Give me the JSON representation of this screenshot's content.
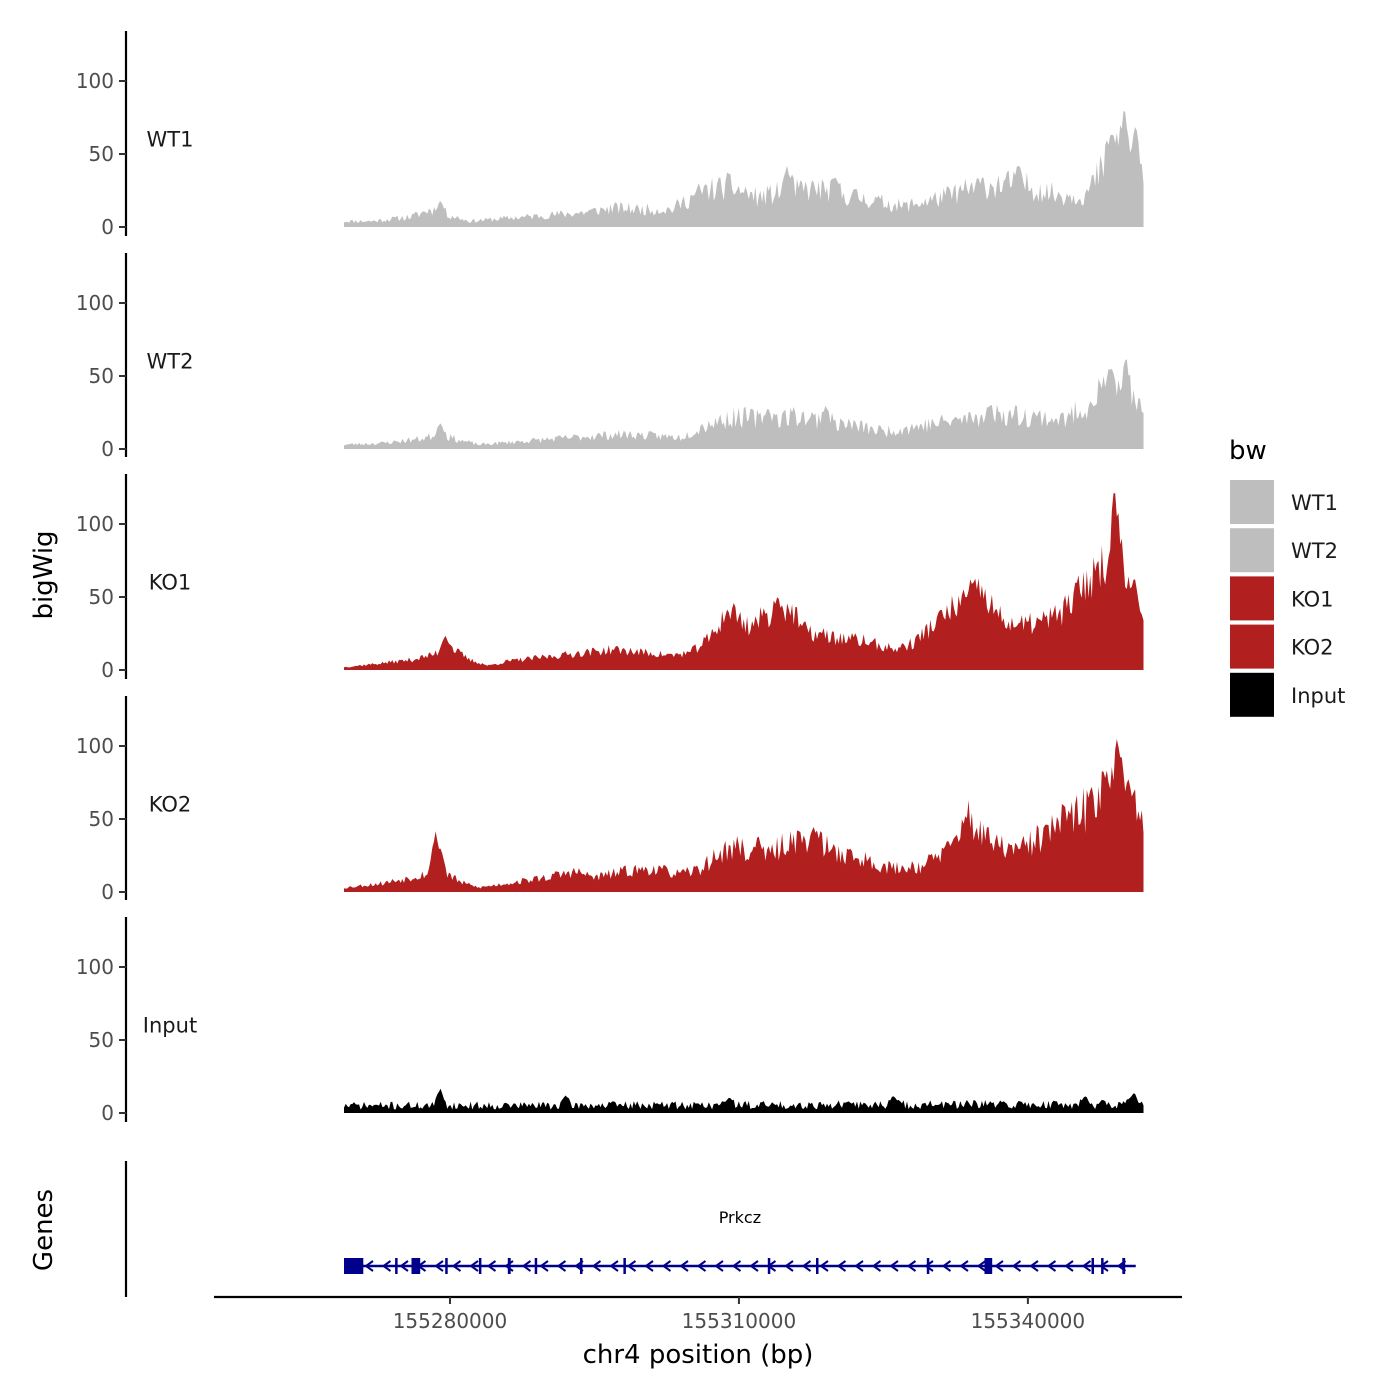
{
  "chart_data": {
    "type": "area",
    "y_axis_title": "bigWig",
    "genes_axis_title": "Genes",
    "x_axis_title": "chr4 position (bp)",
    "x_range": [
      155255500,
      155356000
    ],
    "x_ticks": [
      {
        "value": 155280000,
        "label": "155280000"
      },
      {
        "value": 155310000,
        "label": "155310000"
      },
      {
        "value": 155340000,
        "label": "155340000"
      }
    ],
    "y_range": [
      0,
      135
    ],
    "y_ticks": [
      {
        "value": 0,
        "label": "0"
      },
      {
        "value": 50,
        "label": "50"
      },
      {
        "value": 100,
        "label": "100"
      }
    ],
    "data_x_range": [
      155269000,
      155352000
    ],
    "legend": {
      "title": "bw",
      "entries": [
        {
          "label": "WT1",
          "color": "#bebebe"
        },
        {
          "label": "WT2",
          "color": "#bebebe"
        },
        {
          "label": "KO1",
          "color": "#b21f1f"
        },
        {
          "label": "KO2",
          "color": "#b21f1f"
        },
        {
          "label": "Input",
          "color": "#000000"
        }
      ]
    },
    "series": [
      {
        "name": "WT1",
        "color": "#bebebe",
        "noise": 0.35,
        "seed": 11,
        "profile": [
          [
            155269000,
            4
          ],
          [
            155272000,
            4
          ],
          [
            155276000,
            7
          ],
          [
            155278000,
            12
          ],
          [
            155280000,
            8
          ],
          [
            155282000,
            4
          ],
          [
            155286000,
            6
          ],
          [
            155290000,
            8
          ],
          [
            155294000,
            10
          ],
          [
            155297000,
            13
          ],
          [
            155300000,
            12
          ],
          [
            155303000,
            12
          ],
          [
            155306000,
            24
          ],
          [
            155309000,
            28
          ],
          [
            155312000,
            20
          ],
          [
            155315000,
            25
          ],
          [
            155318000,
            26
          ],
          [
            155321000,
            22
          ],
          [
            155324000,
            18
          ],
          [
            155327000,
            14
          ],
          [
            155331000,
            20
          ],
          [
            155335000,
            28
          ],
          [
            155339000,
            30
          ],
          [
            155343000,
            22
          ],
          [
            155346000,
            22
          ],
          [
            155348000,
            42
          ],
          [
            155349500,
            56
          ],
          [
            155351000,
            40
          ],
          [
            155352000,
            28
          ]
        ],
        "spikes": [
          [
            155279000,
            18
          ],
          [
            155315000,
            42
          ],
          [
            155320000,
            34
          ],
          [
            155339000,
            42
          ],
          [
            155348600,
            65
          ],
          [
            155350000,
            82
          ],
          [
            155351200,
            72
          ]
        ]
      },
      {
        "name": "WT2",
        "color": "#bebebe",
        "noise": 0.35,
        "seed": 23,
        "profile": [
          [
            155269000,
            3
          ],
          [
            155273000,
            4
          ],
          [
            155277000,
            7
          ],
          [
            155279000,
            10
          ],
          [
            155281000,
            6
          ],
          [
            155283000,
            3
          ],
          [
            155287000,
            5
          ],
          [
            155291000,
            7
          ],
          [
            155295000,
            9
          ],
          [
            155298000,
            10
          ],
          [
            155301000,
            9
          ],
          [
            155304000,
            8
          ],
          [
            155307000,
            18
          ],
          [
            155310000,
            22
          ],
          [
            155313000,
            20
          ],
          [
            155316000,
            23
          ],
          [
            155319000,
            19
          ],
          [
            155322000,
            16
          ],
          [
            155325000,
            12
          ],
          [
            155329000,
            16
          ],
          [
            155333000,
            20
          ],
          [
            155337000,
            24
          ],
          [
            155341000,
            22
          ],
          [
            155344000,
            20
          ],
          [
            155346000,
            30
          ],
          [
            155348000,
            42
          ],
          [
            155350000,
            36
          ],
          [
            155352000,
            24
          ]
        ],
        "spikes": [
          [
            155279000,
            18
          ],
          [
            155313000,
            28
          ],
          [
            155319000,
            30
          ],
          [
            155336000,
            30
          ],
          [
            155348500,
            56
          ],
          [
            155350200,
            65
          ]
        ]
      },
      {
        "name": "KO1",
        "color": "#b21f1f",
        "noise": 0.25,
        "seed": 37,
        "profile": [
          [
            155269000,
            2
          ],
          [
            155272000,
            4
          ],
          [
            155276000,
            7
          ],
          [
            155278000,
            10
          ],
          [
            155280000,
            16
          ],
          [
            155282000,
            7
          ],
          [
            155284000,
            3
          ],
          [
            155286000,
            6
          ],
          [
            155290000,
            9
          ],
          [
            155294000,
            12
          ],
          [
            155297000,
            14
          ],
          [
            155300000,
            12
          ],
          [
            155303000,
            10
          ],
          [
            155305000,
            12
          ],
          [
            155307000,
            22
          ],
          [
            155309000,
            42
          ],
          [
            155311000,
            30
          ],
          [
            155313000,
            38
          ],
          [
            155315000,
            44
          ],
          [
            155317000,
            26
          ],
          [
            155320000,
            22
          ],
          [
            155323000,
            20
          ],
          [
            155326000,
            14
          ],
          [
            155328000,
            18
          ],
          [
            155330000,
            30
          ],
          [
            155333000,
            46
          ],
          [
            155335000,
            54
          ],
          [
            155337000,
            36
          ],
          [
            155339000,
            30
          ],
          [
            155342000,
            34
          ],
          [
            155344000,
            42
          ],
          [
            155346000,
            60
          ],
          [
            155348000,
            74
          ],
          [
            155349300,
            86
          ],
          [
            155350500,
            66
          ],
          [
            155352000,
            34
          ]
        ],
        "spikes": [
          [
            155279500,
            24
          ],
          [
            155314000,
            50
          ],
          [
            155334500,
            60
          ],
          [
            155349000,
            125
          ],
          [
            155351000,
            62
          ]
        ]
      },
      {
        "name": "KO2",
        "color": "#b21f1f",
        "noise": 0.3,
        "seed": 53,
        "profile": [
          [
            155269000,
            3
          ],
          [
            155273000,
            6
          ],
          [
            155276000,
            10
          ],
          [
            155279000,
            16
          ],
          [
            155281000,
            7
          ],
          [
            155283000,
            3
          ],
          [
            155286000,
            6
          ],
          [
            155290000,
            10
          ],
          [
            155293000,
            14
          ],
          [
            155295000,
            10
          ],
          [
            155298000,
            14
          ],
          [
            155301000,
            16
          ],
          [
            155304000,
            12
          ],
          [
            155306000,
            16
          ],
          [
            155308000,
            26
          ],
          [
            155310000,
            32
          ],
          [
            155312000,
            20
          ],
          [
            155315000,
            34
          ],
          [
            155317000,
            38
          ],
          [
            155320000,
            28
          ],
          [
            155323000,
            22
          ],
          [
            155326000,
            16
          ],
          [
            155329000,
            18
          ],
          [
            155332000,
            30
          ],
          [
            155334000,
            50
          ],
          [
            155336000,
            34
          ],
          [
            155339000,
            28
          ],
          [
            155341000,
            36
          ],
          [
            155343000,
            46
          ],
          [
            155346000,
            56
          ],
          [
            155348000,
            78
          ],
          [
            155349500,
            70
          ],
          [
            155351000,
            56
          ],
          [
            155352000,
            42
          ]
        ],
        "spikes": [
          [
            155278500,
            42
          ],
          [
            155279000,
            30
          ],
          [
            155312000,
            40
          ],
          [
            155318000,
            42
          ],
          [
            155333500,
            52
          ],
          [
            155348200,
            82
          ],
          [
            155349300,
            108
          ],
          [
            155350500,
            78
          ]
        ]
      },
      {
        "name": "Input",
        "color": "#000000",
        "noise": 0.55,
        "seed": 71,
        "profile": [
          [
            155269000,
            5
          ],
          [
            155352000,
            6
          ]
        ],
        "spikes": [
          [
            155279000,
            17
          ],
          [
            155292000,
            12
          ],
          [
            155309000,
            11
          ],
          [
            155326000,
            12
          ],
          [
            155346000,
            12
          ],
          [
            155351000,
            14
          ]
        ]
      }
    ],
    "gene": {
      "name": "Prkcz",
      "strand": "-",
      "color": "#00008b",
      "start": 155269000,
      "end": 155351200,
      "exons": [
        [
          155269000,
          155271000
        ],
        [
          155274300,
          155274500
        ],
        [
          155276000,
          155276900
        ],
        [
          155279500,
          155279600
        ],
        [
          155283000,
          155283200
        ],
        [
          155286000,
          155286300
        ],
        [
          155288800,
          155289000
        ],
        [
          155293500,
          155293700
        ],
        [
          155298000,
          155298200
        ],
        [
          155313000,
          155313200
        ],
        [
          155318000,
          155318200
        ],
        [
          155329500,
          155329700
        ],
        [
          155335500,
          155336300
        ],
        [
          155346600,
          155346800
        ],
        [
          155347600,
          155347800
        ],
        [
          155349800,
          155350100
        ]
      ]
    }
  }
}
